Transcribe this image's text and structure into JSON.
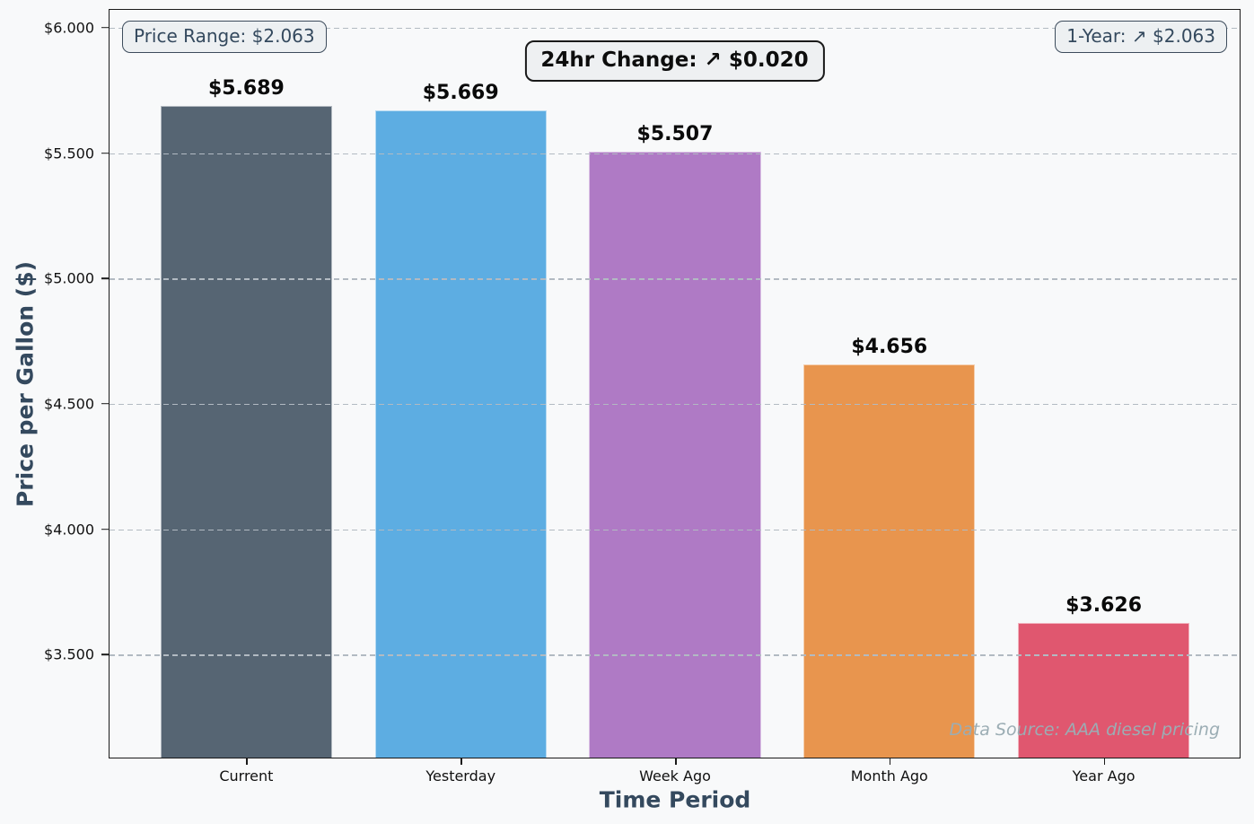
{
  "figure": {
    "background": "#f8f9fa",
    "spine_color": "#1a1a1a",
    "grid_color": "#b2bac2",
    "axis_label_color": "#34495e"
  },
  "chart_data": {
    "type": "bar",
    "title": "24hr Change: ↗ $0.020",
    "xlabel": "Time Period",
    "ylabel": "Price per Gallon ($)",
    "categories": [
      "Current",
      "Yesterday",
      "Week Ago",
      "Month Ago",
      "Year Ago"
    ],
    "values": [
      5.689,
      5.669,
      5.507,
      4.656,
      3.626
    ],
    "bar_labels": [
      "$5.689",
      "$5.669",
      "$5.507",
      "$4.656",
      "$3.626"
    ],
    "bar_colors": [
      "#566573",
      "#5dade2",
      "#af7ac5",
      "#e8954e",
      "#e0576f"
    ],
    "ylim": [
      3.089,
      6.071
    ],
    "yticks": [
      {
        "value": 6.0,
        "label": "$6.000"
      },
      {
        "value": 5.5,
        "label": "$5.500"
      },
      {
        "value": 5.0,
        "label": "$5.000"
      },
      {
        "value": 4.5,
        "label": "$4.500"
      },
      {
        "value": 4.0,
        "label": "$4.000"
      },
      {
        "value": 3.5,
        "label": "$3.500"
      }
    ],
    "grid": {
      "axis": "y",
      "style": "dashed",
      "above_bars": true
    },
    "annotations": {
      "top_left": "Price Range: $2.063",
      "top_center": "24hr Change: ↗ $0.020",
      "top_right": "1-Year: ↗ $2.063",
      "bottom_right": "Data Source: AAA diesel pricing"
    }
  }
}
